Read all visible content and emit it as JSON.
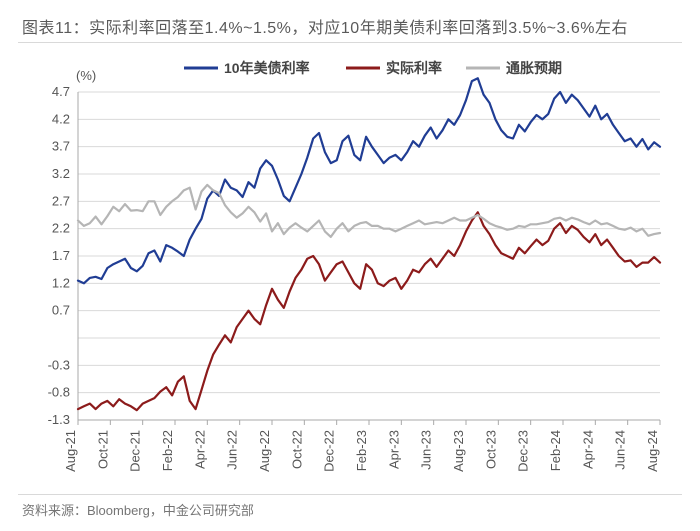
{
  "title": {
    "prefix": "图表11：",
    "text": "实际利率回落至1.4%~1.5%，对应10年期美债利率回落到3.5%~3.6%左右",
    "fontsize": 16,
    "color": "#5a5a5a"
  },
  "footer": {
    "text": "资料来源：Bloomberg，中金公司研究部",
    "fontsize": 13,
    "color": "#757575"
  },
  "chart": {
    "type": "line",
    "ylabel": "(%)",
    "label_fontsize": 13,
    "background_color": "#ffffff",
    "grid_color": "#d9d9d9",
    "axis_color": "#a9a9a9",
    "ylim": [
      -1.3,
      4.7
    ],
    "ytick_step": 0.5,
    "yticks": [
      -1.3,
      -0.8,
      -0.3,
      0.2,
      0.7,
      1.2,
      1.7,
      2.2,
      2.7,
      3.2,
      3.7,
      4.2,
      4.7
    ],
    "ytick_labels": [
      "-1.3",
      "-0.8",
      "-0.3",
      "",
      "0.7",
      "1.2",
      "1.7",
      "2.2",
      "2.7",
      "3.2",
      "3.7",
      "4.2",
      "4.7"
    ],
    "x_categories": [
      "Aug-21",
      "Oct-21",
      "Dec-21",
      "Feb-22",
      "Apr-22",
      "Jun-22",
      "Aug-22",
      "Oct-22",
      "Dec-22",
      "Feb-23",
      "Apr-23",
      "Jun-23",
      "Aug-23",
      "Oct-23",
      "Dec-23",
      "Feb-24",
      "Apr-24",
      "Jun-24",
      "Aug-24"
    ],
    "legend": {
      "items": [
        {
          "label": "10年美债利率",
          "color": "#203D94"
        },
        {
          "label": "实际利率",
          "color": "#8C1B1B"
        },
        {
          "label": "通胀预期",
          "color": "#B5B5B5"
        }
      ],
      "fontsize": 14
    },
    "series": [
      {
        "name": "10年美债利率",
        "color": "#203D94",
        "line_width": 2.2,
        "values": [
          1.25,
          1.2,
          1.3,
          1.32,
          1.28,
          1.48,
          1.55,
          1.6,
          1.65,
          1.48,
          1.42,
          1.52,
          1.75,
          1.8,
          1.6,
          1.9,
          1.85,
          1.78,
          1.7,
          2.0,
          2.2,
          2.38,
          2.75,
          2.9,
          2.8,
          3.1,
          2.95,
          2.9,
          2.78,
          3.05,
          2.95,
          3.3,
          3.45,
          3.35,
          3.1,
          2.8,
          2.7,
          2.95,
          3.2,
          3.5,
          3.85,
          3.95,
          3.6,
          3.4,
          3.45,
          3.8,
          3.9,
          3.55,
          3.45,
          3.88,
          3.7,
          3.55,
          3.4,
          3.5,
          3.55,
          3.45,
          3.6,
          3.8,
          3.7,
          3.9,
          4.05,
          3.85,
          4.0,
          4.2,
          4.1,
          4.28,
          4.55,
          4.9,
          4.95,
          4.65,
          4.5,
          4.2,
          4.0,
          3.88,
          3.85,
          4.1,
          3.98,
          4.15,
          4.28,
          4.2,
          4.3,
          4.58,
          4.7,
          4.5,
          4.65,
          4.55,
          4.4,
          4.25,
          4.45,
          4.2,
          4.3,
          4.1,
          3.95,
          3.8,
          3.85,
          3.7,
          3.84,
          3.65,
          3.78,
          3.7
        ],
        "n_points": 100
      },
      {
        "name": "实际利率",
        "color": "#8C1B1B",
        "line_width": 2.2,
        "values": [
          -1.1,
          -1.05,
          -1.0,
          -1.1,
          -1.0,
          -0.95,
          -1.05,
          -0.92,
          -1.0,
          -1.05,
          -1.12,
          -1.0,
          -0.95,
          -0.9,
          -0.78,
          -0.7,
          -0.85,
          -0.6,
          -0.5,
          -0.95,
          -1.1,
          -0.75,
          -0.4,
          -0.1,
          0.08,
          0.25,
          0.12,
          0.4,
          0.55,
          0.7,
          0.55,
          0.45,
          0.8,
          1.1,
          0.9,
          0.75,
          1.05,
          1.3,
          1.45,
          1.65,
          1.7,
          1.55,
          1.25,
          1.4,
          1.55,
          1.6,
          1.4,
          1.2,
          1.1,
          1.55,
          1.45,
          1.2,
          1.15,
          1.25,
          1.3,
          1.1,
          1.25,
          1.45,
          1.4,
          1.55,
          1.65,
          1.5,
          1.65,
          1.8,
          1.7,
          1.9,
          2.15,
          2.35,
          2.5,
          2.25,
          2.1,
          1.9,
          1.75,
          1.7,
          1.65,
          1.85,
          1.75,
          1.88,
          2.0,
          1.9,
          1.98,
          2.2,
          2.3,
          2.12,
          2.25,
          2.18,
          2.05,
          1.95,
          2.1,
          1.9,
          2.0,
          1.85,
          1.7,
          1.6,
          1.62,
          1.5,
          1.58,
          1.58,
          1.68,
          1.58
        ],
        "n_points": 100
      },
      {
        "name": "通胀预期",
        "color": "#B5B5B5",
        "line_width": 2.2,
        "values": [
          2.35,
          2.25,
          2.3,
          2.42,
          2.28,
          2.43,
          2.6,
          2.52,
          2.65,
          2.53,
          2.54,
          2.52,
          2.7,
          2.7,
          2.45,
          2.6,
          2.7,
          2.78,
          2.9,
          2.95,
          2.55,
          2.88,
          3.0,
          2.9,
          2.85,
          2.63,
          2.5,
          2.4,
          2.48,
          2.6,
          2.5,
          2.33,
          2.48,
          2.15,
          2.3,
          2.1,
          2.22,
          2.3,
          2.22,
          2.15,
          2.25,
          2.35,
          2.15,
          2.05,
          2.2,
          2.3,
          2.15,
          2.25,
          2.3,
          2.32,
          2.25,
          2.25,
          2.2,
          2.2,
          2.15,
          2.2,
          2.25,
          2.3,
          2.35,
          2.28,
          2.3,
          2.32,
          2.3,
          2.35,
          2.4,
          2.35,
          2.35,
          2.4,
          2.45,
          2.38,
          2.3,
          2.25,
          2.22,
          2.18,
          2.2,
          2.25,
          2.23,
          2.28,
          2.28,
          2.3,
          2.32,
          2.38,
          2.4,
          2.35,
          2.4,
          2.37,
          2.32,
          2.28,
          2.35,
          2.28,
          2.3,
          2.25,
          2.2,
          2.18,
          2.22,
          2.15,
          2.2,
          2.07,
          2.1,
          2.12
        ],
        "n_points": 100
      }
    ]
  }
}
